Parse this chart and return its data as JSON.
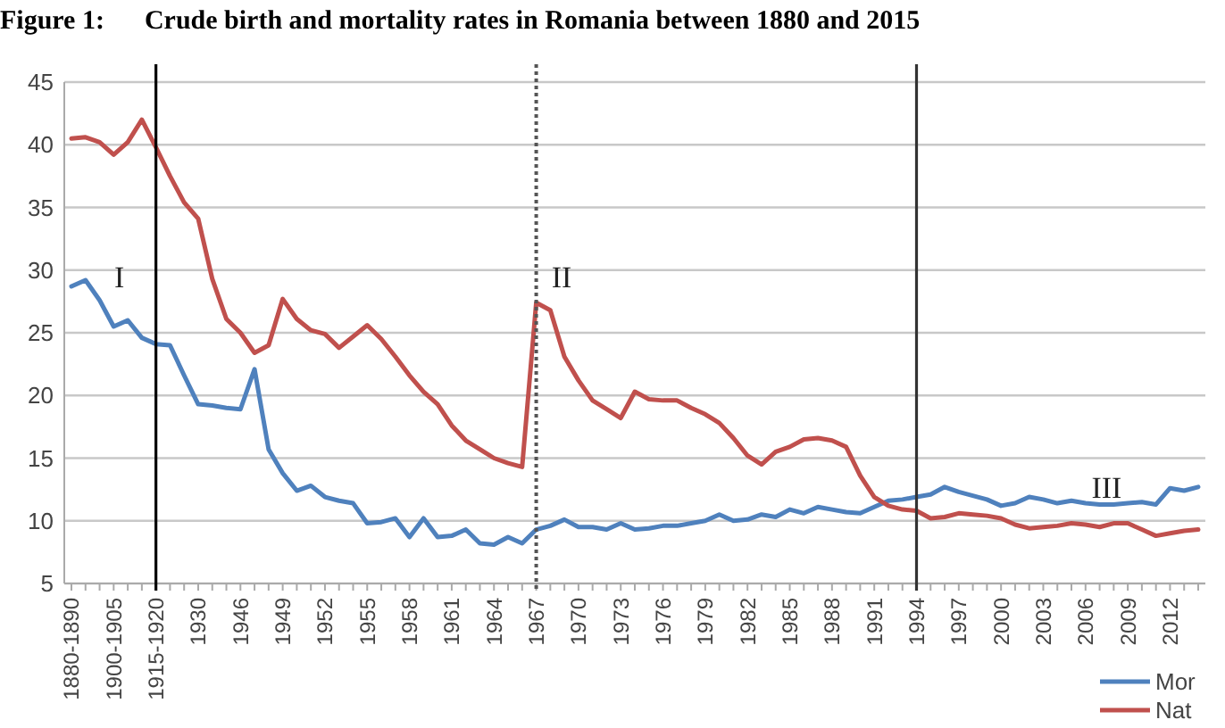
{
  "chart_data": {
    "type": "line",
    "title": "Figure 1:      Crude birth and mortality rates in Romania between 1880 and 2015",
    "categories": [
      "1880-1890",
      null,
      null,
      "1900-1905",
      null,
      null,
      "1915-1920",
      null,
      null,
      "1930",
      null,
      null,
      "1946",
      null,
      null,
      "1949",
      null,
      null,
      "1952",
      null,
      null,
      "1955",
      null,
      null,
      "1958",
      null,
      null,
      "1961",
      null,
      null,
      "1964",
      null,
      null,
      "1967",
      null,
      null,
      "1970",
      null,
      null,
      "1973",
      null,
      null,
      "1976",
      null,
      null,
      "1979",
      null,
      null,
      "1982",
      null,
      null,
      "1985",
      null,
      null,
      "1988",
      null,
      null,
      "1991",
      null,
      null,
      "1994",
      null,
      null,
      "1997",
      null,
      null,
      "2000",
      null,
      null,
      "2003",
      null,
      null,
      "2006",
      null,
      null,
      "2009",
      null,
      null,
      "2012",
      null,
      null
    ],
    "series": [
      {
        "name": "Mor",
        "color": "#4f81bd",
        "values": [
          28.7,
          29.2,
          27.6,
          25.5,
          26.0,
          24.6,
          24.1,
          24.0,
          21.6,
          19.3,
          19.2,
          19.0,
          18.9,
          22.1,
          15.7,
          13.8,
          12.4,
          12.8,
          11.9,
          11.6,
          11.4,
          9.8,
          9.9,
          10.2,
          8.7,
          10.2,
          8.7,
          8.8,
          9.3,
          8.2,
          8.1,
          8.7,
          8.2,
          9.3,
          9.6,
          10.1,
          9.5,
          9.5,
          9.3,
          9.8,
          9.3,
          9.4,
          9.6,
          9.6,
          9.8,
          10.0,
          10.5,
          10.0,
          10.1,
          10.5,
          10.3,
          10.9,
          10.6,
          11.1,
          10.9,
          10.7,
          10.6,
          11.1,
          11.6,
          11.7,
          11.9,
          12.1,
          12.7,
          12.3,
          12.0,
          11.7,
          11.2,
          11.4,
          11.9,
          11.7,
          11.4,
          11.6,
          11.4,
          11.3,
          11.3,
          11.4,
          11.5,
          11.3,
          12.6,
          12.4,
          12.7
        ]
      },
      {
        "name": "Nat",
        "color": "#c0504d",
        "values": [
          40.5,
          40.6,
          40.2,
          39.2,
          40.2,
          42.0,
          39.8,
          37.5,
          35.4,
          34.1,
          29.3,
          26.1,
          25.0,
          23.4,
          24.0,
          27.7,
          26.1,
          25.2,
          24.9,
          23.8,
          24.7,
          25.6,
          24.5,
          23.1,
          21.6,
          20.3,
          19.3,
          17.6,
          16.4,
          15.7,
          15.0,
          14.6,
          14.3,
          27.4,
          26.8,
          23.1,
          21.2,
          19.6,
          18.9,
          18.2,
          20.3,
          19.7,
          19.6,
          19.6,
          19.0,
          18.5,
          17.8,
          16.6,
          15.2,
          14.5,
          15.5,
          15.9,
          16.5,
          16.6,
          16.4,
          15.9,
          13.6,
          11.9,
          11.2,
          10.9,
          10.8,
          10.2,
          10.3,
          10.6,
          10.5,
          10.4,
          10.2,
          9.7,
          9.4,
          9.5,
          9.6,
          9.8,
          9.7,
          9.5,
          9.8,
          9.8,
          9.3,
          8.8,
          9.0,
          9.2,
          9.3
        ]
      }
    ],
    "ylim": [
      5,
      45
    ],
    "yticks": [
      5,
      10,
      15,
      20,
      25,
      30,
      35,
      40,
      45
    ],
    "grid": "y",
    "legend": "bottom right",
    "ref_lines": [
      {
        "axis": "x",
        "value": "1915-1920",
        "line_style": "solid",
        "color": "#000000"
      },
      {
        "axis": "x",
        "value": "1967",
        "line_style": "dotted",
        "color": "#555555"
      },
      {
        "axis": "x",
        "value": "1994",
        "line_style": "solid",
        "color": "#333333"
      }
    ],
    "annotations": [
      "I",
      "II",
      "III"
    ]
  }
}
